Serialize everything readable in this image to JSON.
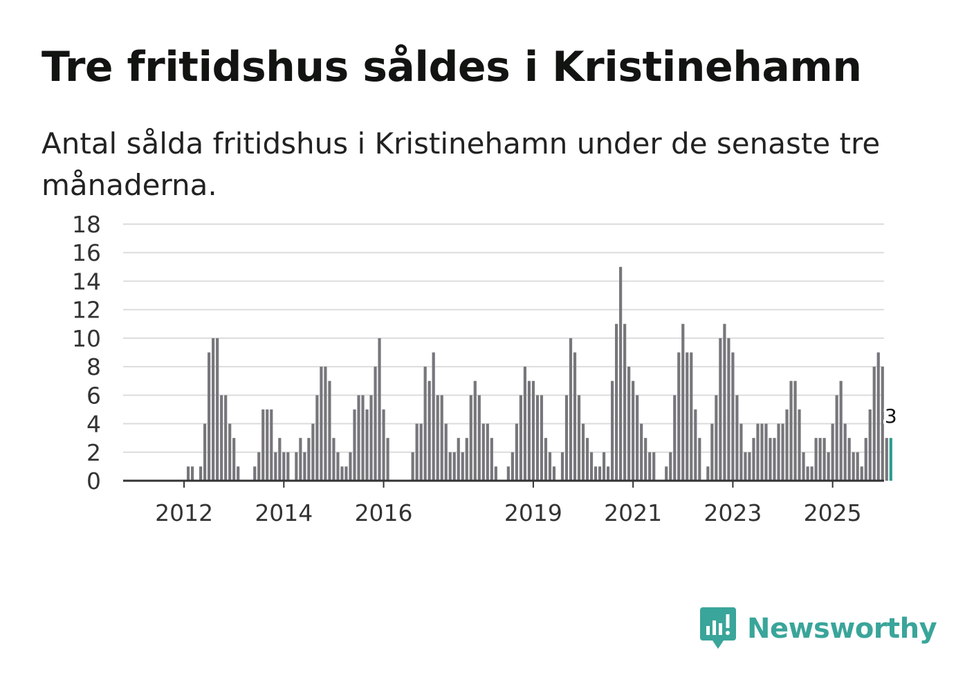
{
  "header": {
    "title": "Tre fritidshus såldes i Kristinehamn",
    "subtitle": "Antal sålda fritidshus i Kristinehamn under de senaste tre månaderna."
  },
  "brand": {
    "name": "Newsworthy",
    "color": "#3aa59a"
  },
  "chart_data": {
    "type": "bar",
    "title": "Tre fritidshus såldes i Kristinehamn",
    "xlabel": "",
    "ylabel": "",
    "ylim": [
      0,
      18
    ],
    "yticks": [
      "0",
      "2",
      "4",
      "6",
      "8",
      "10",
      "12",
      "14",
      "16",
      "18"
    ],
    "grid": true,
    "bar_color": "#77767b",
    "highlight_color": "#2a9d8f",
    "xticks": [
      {
        "label": "2012",
        "index": 8
      },
      {
        "label": "2014",
        "index": 32
      },
      {
        "label": "2016",
        "index": 56
      },
      {
        "label": "2019",
        "index": 92
      },
      {
        "label": "2021",
        "index": 116
      },
      {
        "label": "2023",
        "index": 140
      },
      {
        "label": "2025",
        "index": 164
      }
    ],
    "values": [
      0,
      0,
      0,
      0,
      0,
      0,
      0,
      0,
      0,
      1,
      1,
      0,
      1,
      4,
      9,
      10,
      10,
      6,
      6,
      4,
      3,
      1,
      0,
      0,
      0,
      1,
      2,
      5,
      5,
      5,
      2,
      3,
      2,
      2,
      0,
      2,
      3,
      2,
      3,
      4,
      6,
      8,
      8,
      7,
      3,
      2,
      1,
      1,
      2,
      5,
      6,
      6,
      5,
      6,
      8,
      10,
      5,
      3,
      0,
      0,
      0,
      0,
      0,
      2,
      4,
      4,
      8,
      7,
      9,
      6,
      6,
      4,
      2,
      2,
      3,
      2,
      3,
      6,
      7,
      6,
      4,
      4,
      3,
      1,
      0,
      0,
      1,
      2,
      4,
      6,
      8,
      7,
      7,
      6,
      6,
      3,
      2,
      1,
      0,
      2,
      6,
      10,
      9,
      6,
      4,
      3,
      2,
      1,
      1,
      2,
      1,
      7,
      11,
      15,
      11,
      8,
      7,
      6,
      4,
      3,
      2,
      2,
      0,
      0,
      1,
      2,
      6,
      9,
      11,
      9,
      9,
      5,
      3,
      0,
      1,
      4,
      6,
      10,
      11,
      10,
      9,
      6,
      4,
      2,
      2,
      3,
      4,
      4,
      4,
      3,
      3,
      4,
      4,
      5,
      7,
      7,
      5,
      2,
      1,
      1,
      3,
      3,
      3,
      2,
      4,
      6,
      7,
      4,
      3,
      2,
      2,
      1,
      3,
      5,
      8,
      9,
      8,
      3,
      3
    ],
    "highlight_index": 178,
    "highlight_label": "3"
  }
}
